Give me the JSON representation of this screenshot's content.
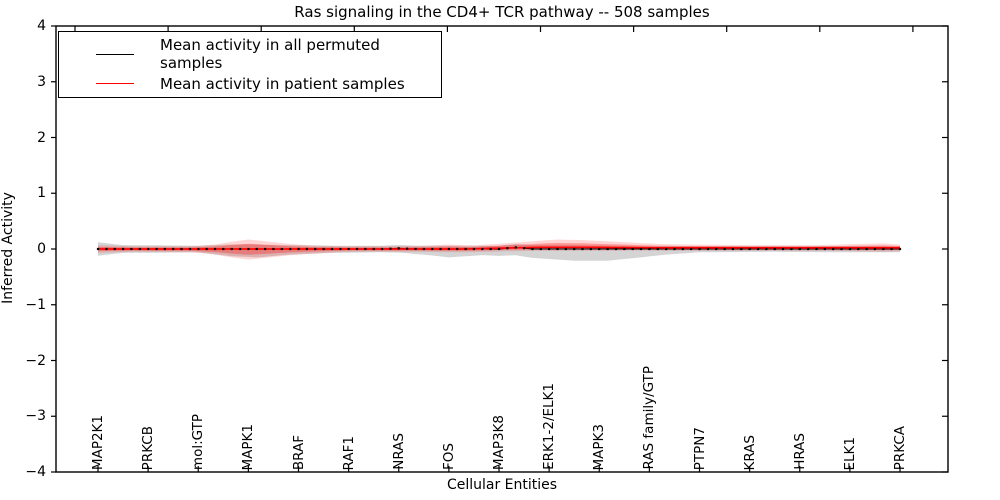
{
  "figure": {
    "title": "Ras signaling in the CD4+ TCR pathway -- 508 samples"
  },
  "legend": {
    "entries": [
      {
        "label": "Mean activity in all permuted samples",
        "color": "#000000"
      },
      {
        "label": "Mean activity in patient samples",
        "color": "#ff0000"
      }
    ]
  },
  "chart_data": {
    "type": "line",
    "title": "Ras signaling in the CD4+ TCR pathway -- 508 samples",
    "xlabel": "Cellular Entities",
    "ylabel": "Inferred Activity",
    "ylim": [
      -4,
      4
    ],
    "grid": false,
    "legend_position": "upper left",
    "y_tick_labels": [
      "4",
      "3",
      "2",
      "1",
      "0",
      "−1",
      "−2",
      "−3",
      "−4"
    ],
    "y_tick_values": [
      4,
      3,
      2,
      1,
      0,
      -1,
      -2,
      -3,
      -4
    ],
    "x_tick_labels": [
      "MAP2K1",
      "PRKCB",
      "mol:GTP",
      "MAPK1",
      "BRAF",
      "RAF1",
      "NRAS",
      "FOS",
      "MAP3K8",
      "ERK1-2/ELK1",
      "MAPK3",
      "RAS family/GTP",
      "PTPN7",
      "KRAS",
      "HRAS",
      "ELK1",
      "PRKCA"
    ],
    "n_entities": 97,
    "labeled_every": 6,
    "values_at_labels": {
      "permuted_mean": [
        0,
        0,
        0,
        0,
        0,
        0,
        0,
        0,
        0,
        0,
        0,
        0,
        0,
        0,
        0,
        0,
        0
      ],
      "patient_mean": [
        0,
        0,
        0,
        0,
        0,
        0,
        0,
        0,
        0.01,
        0.03,
        0.03,
        0.02,
        0.02,
        0.02,
        0.02,
        0.02,
        0.02
      ]
    },
    "series": [
      {
        "name": "Mean activity in all permuted samples",
        "color": "#000000",
        "band_color": "#000000",
        "band_opacity": 0.17,
        "mean_control_points": [
          [
            0,
            0
          ],
          [
            34,
            0
          ],
          [
            36,
            0.012
          ],
          [
            38,
            0
          ],
          [
            48,
            0
          ],
          [
            50,
            0.028
          ],
          [
            52,
            0
          ],
          [
            96,
            0
          ]
        ],
        "band_control_points": [
          [
            0,
            0.12,
            0.12
          ],
          [
            3,
            0.07,
            0.07
          ],
          [
            12,
            0.06,
            0.06
          ],
          [
            16,
            0.08,
            0.13
          ],
          [
            19,
            0.08,
            0.15
          ],
          [
            23,
            0.07,
            0.1
          ],
          [
            28,
            0.06,
            0.07
          ],
          [
            34,
            0.06,
            0.06
          ],
          [
            39,
            0.06,
            0.1
          ],
          [
            42,
            0.06,
            0.15
          ],
          [
            46,
            0.06,
            0.11
          ],
          [
            49,
            0.06,
            0.13
          ],
          [
            53,
            0.07,
            0.17
          ],
          [
            57,
            0.07,
            0.21
          ],
          [
            61,
            0.06,
            0.21
          ],
          [
            65,
            0.05,
            0.15
          ],
          [
            68,
            0.05,
            0.1
          ],
          [
            72,
            0.05,
            0.06
          ],
          [
            80,
            0.05,
            0.05
          ],
          [
            90,
            0.05,
            0.06
          ],
          [
            96,
            0.05,
            0.06
          ]
        ]
      },
      {
        "name": "Mean activity in patient samples",
        "color": "#ff0000",
        "band_color": "#ff0000",
        "band_opacity": 0.16,
        "inner_band_scale": 0.55,
        "inner_band_opacity": 0.3,
        "mean_control_points": [
          [
            0,
            0
          ],
          [
            44,
            0
          ],
          [
            48,
            0.015
          ],
          [
            53,
            0.03
          ],
          [
            58,
            0.03
          ],
          [
            63,
            0.025
          ],
          [
            68,
            0.02
          ],
          [
            80,
            0.02
          ],
          [
            96,
            0.02
          ]
        ],
        "band_control_points": [
          [
            0,
            0.07,
            0.07
          ],
          [
            4,
            0.05,
            0.05
          ],
          [
            11,
            0.05,
            0.06
          ],
          [
            14,
            0.08,
            0.1
          ],
          [
            16,
            0.13,
            0.15
          ],
          [
            18,
            0.17,
            0.19
          ],
          [
            20,
            0.14,
            0.16
          ],
          [
            23,
            0.09,
            0.11
          ],
          [
            26,
            0.06,
            0.08
          ],
          [
            30,
            0.05,
            0.05
          ],
          [
            36,
            0.05,
            0.05
          ],
          [
            39,
            0.06,
            0.05
          ],
          [
            42,
            0.08,
            0.06
          ],
          [
            45,
            0.06,
            0.06
          ],
          [
            48,
            0.08,
            0.06
          ],
          [
            52,
            0.11,
            0.06
          ],
          [
            55,
            0.14,
            0.06
          ],
          [
            58,
            0.13,
            0.06
          ],
          [
            61,
            0.11,
            0.06
          ],
          [
            64,
            0.09,
            0.05
          ],
          [
            67,
            0.07,
            0.05
          ],
          [
            71,
            0.06,
            0.05
          ],
          [
            78,
            0.05,
            0.05
          ],
          [
            86,
            0.05,
            0.05
          ],
          [
            91,
            0.07,
            0.06
          ],
          [
            94,
            0.08,
            0.07
          ],
          [
            96,
            0.06,
            0.06
          ]
        ]
      }
    ]
  }
}
